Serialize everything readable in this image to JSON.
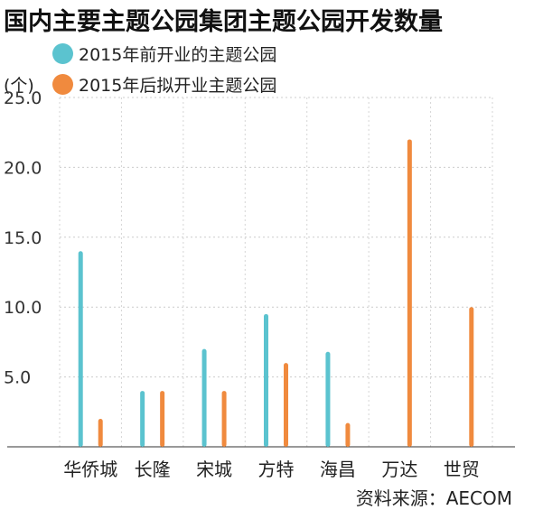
{
  "chart_data": {
    "type": "bar",
    "title": "国内主要主题公园集团主题公园开发数量",
    "ylabel": "(个)",
    "ylim": [
      0,
      25
    ],
    "yticks": [
      "5.0",
      "10.0",
      "15.0",
      "20.0",
      "25.0"
    ],
    "categories": [
      "华侨城",
      "长隆",
      "宋城",
      "方特",
      "海昌",
      "万达",
      "世贸"
    ],
    "series": [
      {
        "name": "2015年前开业的主题公园",
        "color": "#5bc3cf",
        "values": [
          14,
          4,
          7,
          9.5,
          6.8,
          null,
          null
        ]
      },
      {
        "name": "2015年后拟开业主题公园",
        "color": "#f08a3e",
        "values": [
          2,
          4,
          4,
          6,
          1.7,
          22,
          10
        ]
      }
    ],
    "grid": true,
    "legend_position": "top-left",
    "source": "资料来源：AECOM"
  }
}
